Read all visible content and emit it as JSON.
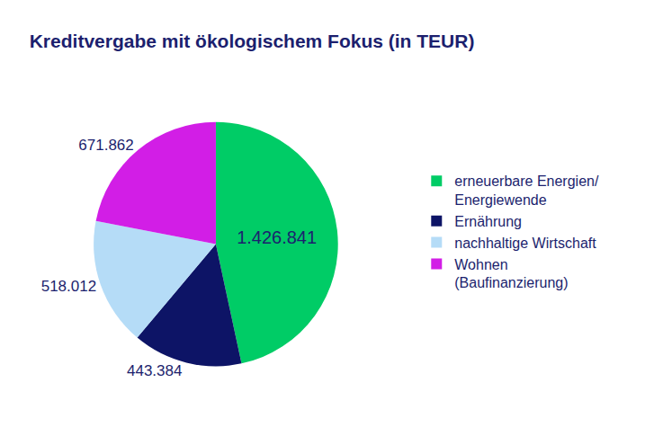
{
  "chart_data": {
    "type": "pie",
    "title": "Kreditvergabe mit ökologischem Fokus (in TEUR)",
    "categories": [
      "erneuerbare Energien/\nEnergiewende",
      "Ernährung",
      "nachhaltige Wirtschaft",
      "Wohnen\n(Baufinanzierung)"
    ],
    "values": [
      1426841,
      443384,
      518012,
      671862
    ],
    "value_labels": [
      "1.426.841",
      "443.384",
      "518.012",
      "671.862"
    ],
    "colors": [
      "#00cc66",
      "#0d1466",
      "#b5dcf7",
      "#d21ee6"
    ],
    "data_labels": true,
    "legend": "right"
  }
}
